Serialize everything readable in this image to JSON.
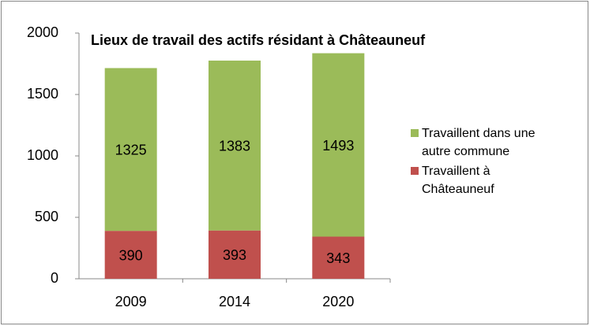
{
  "chart_data": {
    "type": "stacked_bar",
    "title": "Lieux de travail des actifs résidant à Châteauneuf",
    "categories": [
      "2009",
      "2014",
      "2020"
    ],
    "series": [
      {
        "name": "Travaillent à Châteauneuf",
        "color": "#c0504d",
        "values": [
          390,
          393,
          343
        ]
      },
      {
        "name": "Travaillent dans une autre commune",
        "color": "#9bbb59",
        "values": [
          1325,
          1383,
          1493
        ]
      }
    ],
    "ylim": [
      0,
      2000
    ],
    "yticks": [
      0,
      500,
      1000,
      1500,
      2000
    ],
    "legend": "right"
  }
}
